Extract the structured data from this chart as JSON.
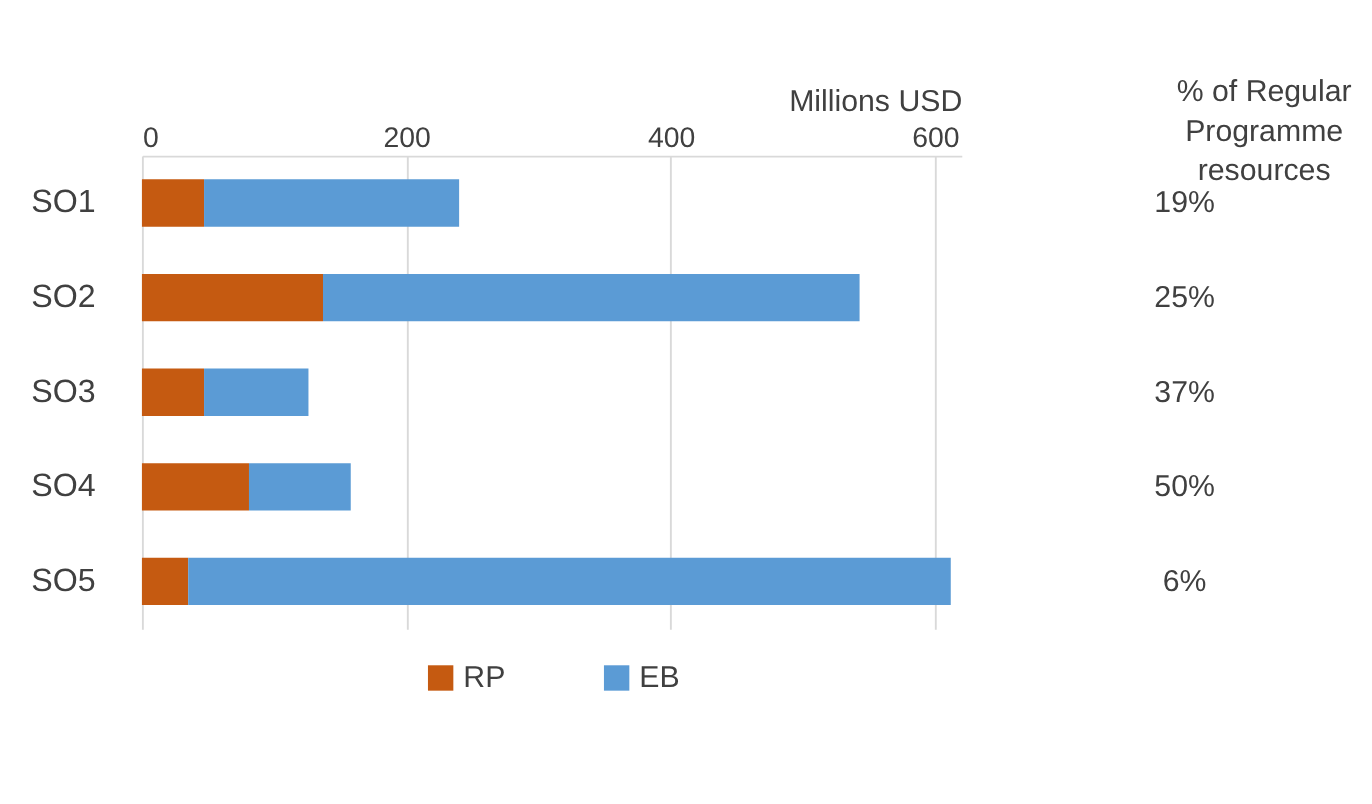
{
  "chart_data": {
    "type": "bar",
    "orientation": "horizontal",
    "stacked": true,
    "categories": [
      "SO1",
      "SO2",
      "SO3",
      "SO4",
      "SO5"
    ],
    "series": [
      {
        "name": "RP",
        "color": "#c55a11",
        "values": [
          47,
          137,
          47,
          81,
          35
        ]
      },
      {
        "name": "EB",
        "color": "#5b9bd5",
        "values": [
          193,
          406,
          79,
          77,
          577
        ]
      }
    ],
    "xlim": [
      0,
      620
    ],
    "xticks": [
      0,
      200,
      400,
      600
    ],
    "xlabel": "Millions USD",
    "grid": "x",
    "legend": "bottom",
    "annotations": [
      "% of Regular Programme resources",
      "19%",
      "25%",
      "37%",
      "50%",
      "6%"
    ]
  }
}
